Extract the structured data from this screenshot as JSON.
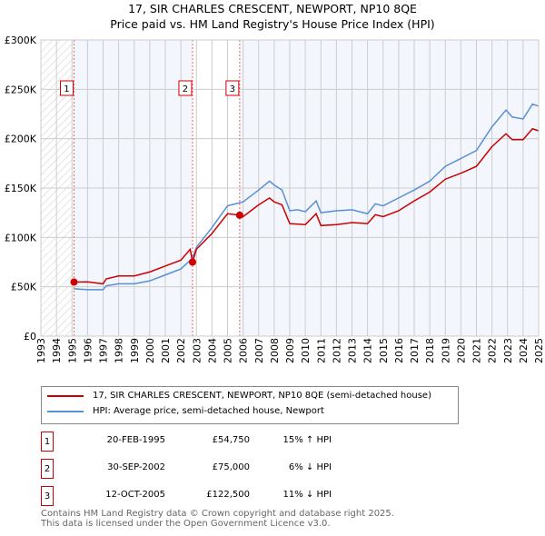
{
  "chart_data": {
    "type": "line",
    "title": "17, SIR CHARLES CRESCENT, NEWPORT, NP10 8QE",
    "subtitle": "Price paid vs. HM Land Registry's House Price Index (HPI)",
    "xlim": [
      1993,
      2025
    ],
    "ylim": [
      0,
      300000
    ],
    "x_ticks": [
      "1993",
      "1994",
      "1995",
      "1996",
      "1997",
      "1998",
      "1999",
      "2000",
      "2001",
      "2002",
      "2003",
      "2004",
      "2005",
      "2006",
      "2007",
      "2008",
      "2009",
      "2010",
      "2011",
      "2012",
      "2013",
      "2014",
      "2015",
      "2016",
      "2017",
      "2018",
      "2019",
      "2020",
      "2021",
      "2022",
      "2023",
      "2024",
      "2025"
    ],
    "y_ticks": [
      {
        "v": 0,
        "label": "£0"
      },
      {
        "v": 50000,
        "label": "£50K"
      },
      {
        "v": 100000,
        "label": "£100K"
      },
      {
        "v": 150000,
        "label": "£150K"
      },
      {
        "v": 200000,
        "label": "£200K"
      },
      {
        "v": 250000,
        "label": "£250K"
      },
      {
        "v": 300000,
        "label": "£300K"
      }
    ],
    "grid": true,
    "series": [
      {
        "name": "17, SIR CHARLES CRESCENT, NEWPORT, NP10 8QE (semi-detached house)",
        "color": "#cc0000",
        "x": [
          1995.13,
          1996,
          1997,
          1997.2,
          1998,
          1999,
          2000,
          2001,
          2002,
          2002.6,
          2002.75,
          2003,
          2004,
          2005,
          2005.78,
          2006,
          2007,
          2007.7,
          2008,
          2008.5,
          2009,
          2010,
          2010.7,
          2011,
          2012,
          2013,
          2014,
          2014.5,
          2015,
          2016,
          2017,
          2018,
          2019,
          2020,
          2021,
          2022,
          2022.9,
          2023.3,
          2024,
          2024.6,
          2025
        ],
        "y": [
          54750,
          55000,
          53000,
          58000,
          61000,
          61000,
          65000,
          71000,
          77000,
          88000,
          75000,
          88000,
          104000,
          124000,
          122500,
          121000,
          133000,
          140000,
          136000,
          133000,
          114000,
          113000,
          124000,
          112000,
          113000,
          115000,
          114000,
          123000,
          121000,
          127000,
          137000,
          146000,
          159000,
          165000,
          172000,
          192000,
          205000,
          199000,
          199000,
          210000,
          208000
        ]
      },
      {
        "name": "HPI: Average price, semi-detached house, Newport",
        "color": "#5b8fd4",
        "x": [
          1995.13,
          1996,
          1997,
          1997.2,
          1998,
          1999,
          2000,
          2001,
          2002,
          2002.75,
          2003,
          2004,
          2005,
          2006,
          2007,
          2007.7,
          2008,
          2008.5,
          2009,
          2009.5,
          2010,
          2010.7,
          2011,
          2012,
          2013,
          2014,
          2014.5,
          2015,
          2016,
          2017,
          2018,
          2019,
          2020,
          2021,
          2022,
          2022.9,
          2023.3,
          2024,
          2024.6,
          2025
        ],
        "y": [
          48000,
          47000,
          47000,
          51000,
          53000,
          53000,
          56000,
          62000,
          68000,
          79000,
          90000,
          110000,
          132000,
          136000,
          148000,
          157000,
          153000,
          148000,
          127000,
          128000,
          126000,
          137000,
          125000,
          127000,
          128000,
          124000,
          134000,
          132000,
          140000,
          148000,
          157000,
          172000,
          180000,
          188000,
          212000,
          229000,
          222000,
          220000,
          235000,
          233000
        ]
      }
    ],
    "sales": [
      {
        "n": "1",
        "x": 1995.13,
        "y": 54750,
        "date": "20-FEB-1995",
        "price": "£54,750",
        "hpi": "15% ↑ HPI"
      },
      {
        "n": "2",
        "x": 2002.75,
        "y": 75000,
        "date": "30-SEP-2002",
        "price": "£75,000",
        "hpi": "6% ↓ HPI"
      },
      {
        "n": "3",
        "x": 2005.78,
        "y": 122500,
        "date": "12-OCT-2005",
        "price": "£122,500",
        "hpi": "11% ↓ HPI"
      }
    ]
  },
  "footer": {
    "line1": "Contains HM Land Registry data © Crown copyright and database right 2025.",
    "line2": "This data is licensed under the Open Government Licence v3.0."
  }
}
